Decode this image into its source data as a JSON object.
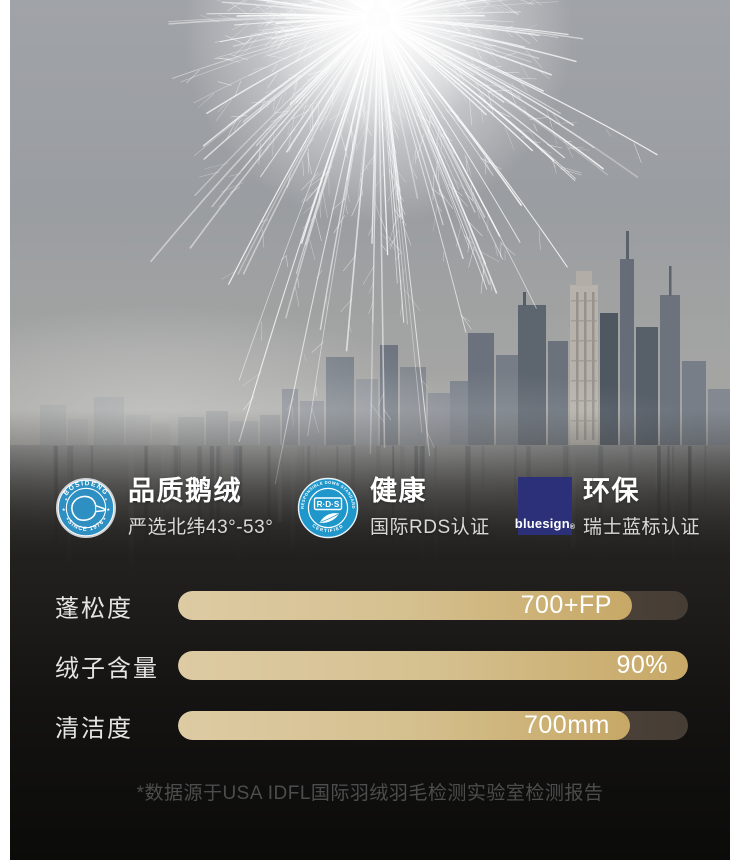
{
  "colors": {
    "accent_gold": "#cfb377",
    "gold_gradient_start": "#ddcba4",
    "gold_gradient_end": "#c7a866",
    "bar_track": "#55493f",
    "bosideng_blue": "#2e8fc2",
    "rds_blue": "#1f97ca",
    "bluesign_navy": "#2c3078",
    "section_bg": "#141312",
    "title_text": "#ffffff",
    "subtitle_text": "#d9d9d9",
    "footnote_text": "#4d4d4d"
  },
  "certs": [
    {
      "title": "品质鹅绒",
      "subtitle": "严选北纬43°-53°",
      "badge": {
        "type": "bosideng",
        "ring_top": "BOSIDENG",
        "ring_bottom": "SINCE 1976"
      }
    },
    {
      "title": "健康",
      "subtitle": "国际RDS认证",
      "badge": {
        "type": "rds",
        "ring_top": "RESPONSIBLE DOWN STANDARD",
        "center": "R·D·S",
        "ring_bottom": "CERTIFIED"
      }
    },
    {
      "title": "环保",
      "subtitle": "瑞士蓝标认证",
      "badge": {
        "type": "bluesign",
        "label": "bluesign",
        "reg": "®"
      }
    }
  ],
  "metrics": [
    {
      "label": "蓬松度",
      "value": "700+FP",
      "fill_pct": 89
    },
    {
      "label": "绒子含量",
      "value": "90%",
      "fill_pct": 100
    },
    {
      "label": "清洁度",
      "value": "700mm",
      "fill_pct": 88.6
    }
  ],
  "chart_data": {
    "type": "bar",
    "categories": [
      "蓬松度",
      "绒子含量",
      "清洁度"
    ],
    "values": [
      "700+FP",
      "90%",
      "700mm"
    ],
    "fill_percent": [
      89,
      100,
      88.6
    ],
    "title": "",
    "note": "*数据源于USA IDFL国际羽绒羽毛检测实验室检测报告",
    "legend": "none",
    "orientation": "horizontal"
  },
  "footnote": "*数据源于USA IDFL国际羽绒羽毛检测实验室检测报告"
}
